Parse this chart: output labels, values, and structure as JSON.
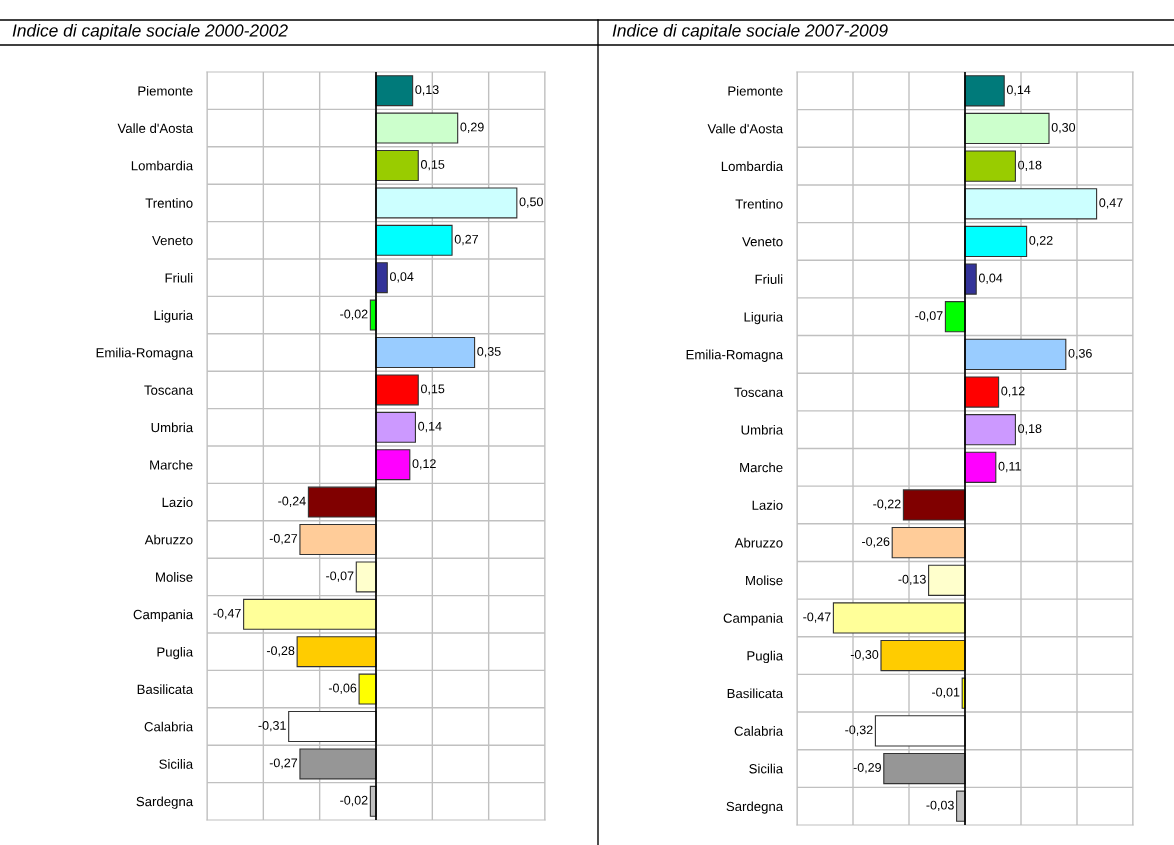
{
  "chart_data": [
    {
      "type": "bar",
      "orientation": "horizontal",
      "title": "Indice di capitale sociale 2000-2002",
      "categories": [
        "Piemonte",
        "Valle d'Aosta",
        "Lombardia",
        "Trentino",
        "Veneto",
        "Friuli",
        "Liguria",
        "Emilia-Romagna",
        "Toscana",
        "Umbria",
        "Marche",
        "Lazio",
        "Abruzzo",
        "Molise",
        "Campania",
        "Puglia",
        "Basilicata",
        "Calabria",
        "Sicilia",
        "Sardegna"
      ],
      "values": [
        0.13,
        0.29,
        0.15,
        0.5,
        0.27,
        0.04,
        -0.02,
        0.35,
        0.15,
        0.14,
        0.12,
        -0.24,
        -0.27,
        -0.07,
        -0.47,
        -0.28,
        -0.06,
        -0.31,
        -0.27,
        -0.02
      ],
      "value_labels": [
        "0,13",
        "0,29",
        "0,15",
        "0,50",
        "0,27",
        "0,04",
        "-0,02",
        "0,35",
        "0,15",
        "0,14",
        "0,12",
        "-0,24",
        "-0,27",
        "-0,07",
        "-0,47",
        "-0,28",
        "-0,06",
        "-0,31",
        "-0,27",
        "-0,02"
      ],
      "colors": [
        "#007a7a",
        "#ccffcc",
        "#99cc00",
        "#ccffff",
        "#00ffff",
        "#333399",
        "#00ff00",
        "#99ccff",
        "#ff0000",
        "#cc99ff",
        "#ff00ff",
        "#800000",
        "#ffcc99",
        "#ffffcc",
        "#ffff99",
        "#ffcc00",
        "#ffff00",
        "#ffffff",
        "#969696",
        "#c0c0c0"
      ],
      "xlim": [
        -0.6,
        0.6
      ],
      "xticks": [
        {
          "value": -0.6,
          "label": null
        },
        {
          "value": -0.4,
          "label": null
        },
        {
          "value": -0.2,
          "label": null
        },
        {
          "value": 0,
          "label": null
        },
        {
          "value": 0.2,
          "label": null
        },
        {
          "value": 0.4,
          "label": null
        },
        {
          "value": 0.6,
          "label": null
        }
      ],
      "grid": true,
      "tick_labels": "y",
      "legend": false
    },
    {
      "type": "bar",
      "orientation": "horizontal",
      "title": "Indice di capitale sociale 2007-2009",
      "categories": [
        "Piemonte",
        "Valle d'Aosta",
        "Lombardia",
        "Trentino",
        "Veneto",
        "Friuli",
        "Liguria",
        "Emilia-Romagna",
        "Toscana",
        "Umbria",
        "Marche",
        "Lazio",
        "Abruzzo",
        "Molise",
        "Campania",
        "Puglia",
        "Basilicata",
        "Calabria",
        "Sicilia",
        "Sardegna"
      ],
      "values": [
        0.14,
        0.3,
        0.18,
        0.47,
        0.22,
        0.04,
        -0.07,
        0.36,
        0.12,
        0.18,
        0.11,
        -0.22,
        -0.26,
        -0.13,
        -0.47,
        -0.3,
        -0.01,
        -0.32,
        -0.29,
        -0.03
      ],
      "value_labels": [
        "0,14",
        "0,30",
        "0,18",
        "0,47",
        "0,22",
        "0,04",
        "-0,07",
        "0,36",
        "0,12",
        "0,18",
        "0,11",
        "-0,22",
        "-0,26",
        "-0,13",
        "-0,47",
        "-0,30",
        "-0,01",
        "-0,32",
        "-0,29",
        "-0,03"
      ],
      "colors": [
        "#007a7a",
        "#ccffcc",
        "#99cc00",
        "#ccffff",
        "#00ffff",
        "#333399",
        "#00ff00",
        "#99ccff",
        "#ff0000",
        "#cc99ff",
        "#ff00ff",
        "#800000",
        "#ffcc99",
        "#ffffcc",
        "#ffff99",
        "#ffcc00",
        "#ffff00",
        "#ffffff",
        "#969696",
        "#c0c0c0"
      ],
      "xlim": [
        -0.6,
        0.6
      ],
      "xticks": [
        {
          "value": -0.6,
          "label": null
        },
        {
          "value": -0.4,
          "label": null
        },
        {
          "value": -0.2,
          "label": null
        },
        {
          "value": 0,
          "label": null
        },
        {
          "value": 0.2,
          "label": null
        },
        {
          "value": 0.4,
          "label": null
        },
        {
          "value": 0.6,
          "label": null
        }
      ],
      "grid": true,
      "tick_labels": "y",
      "legend": false
    }
  ]
}
